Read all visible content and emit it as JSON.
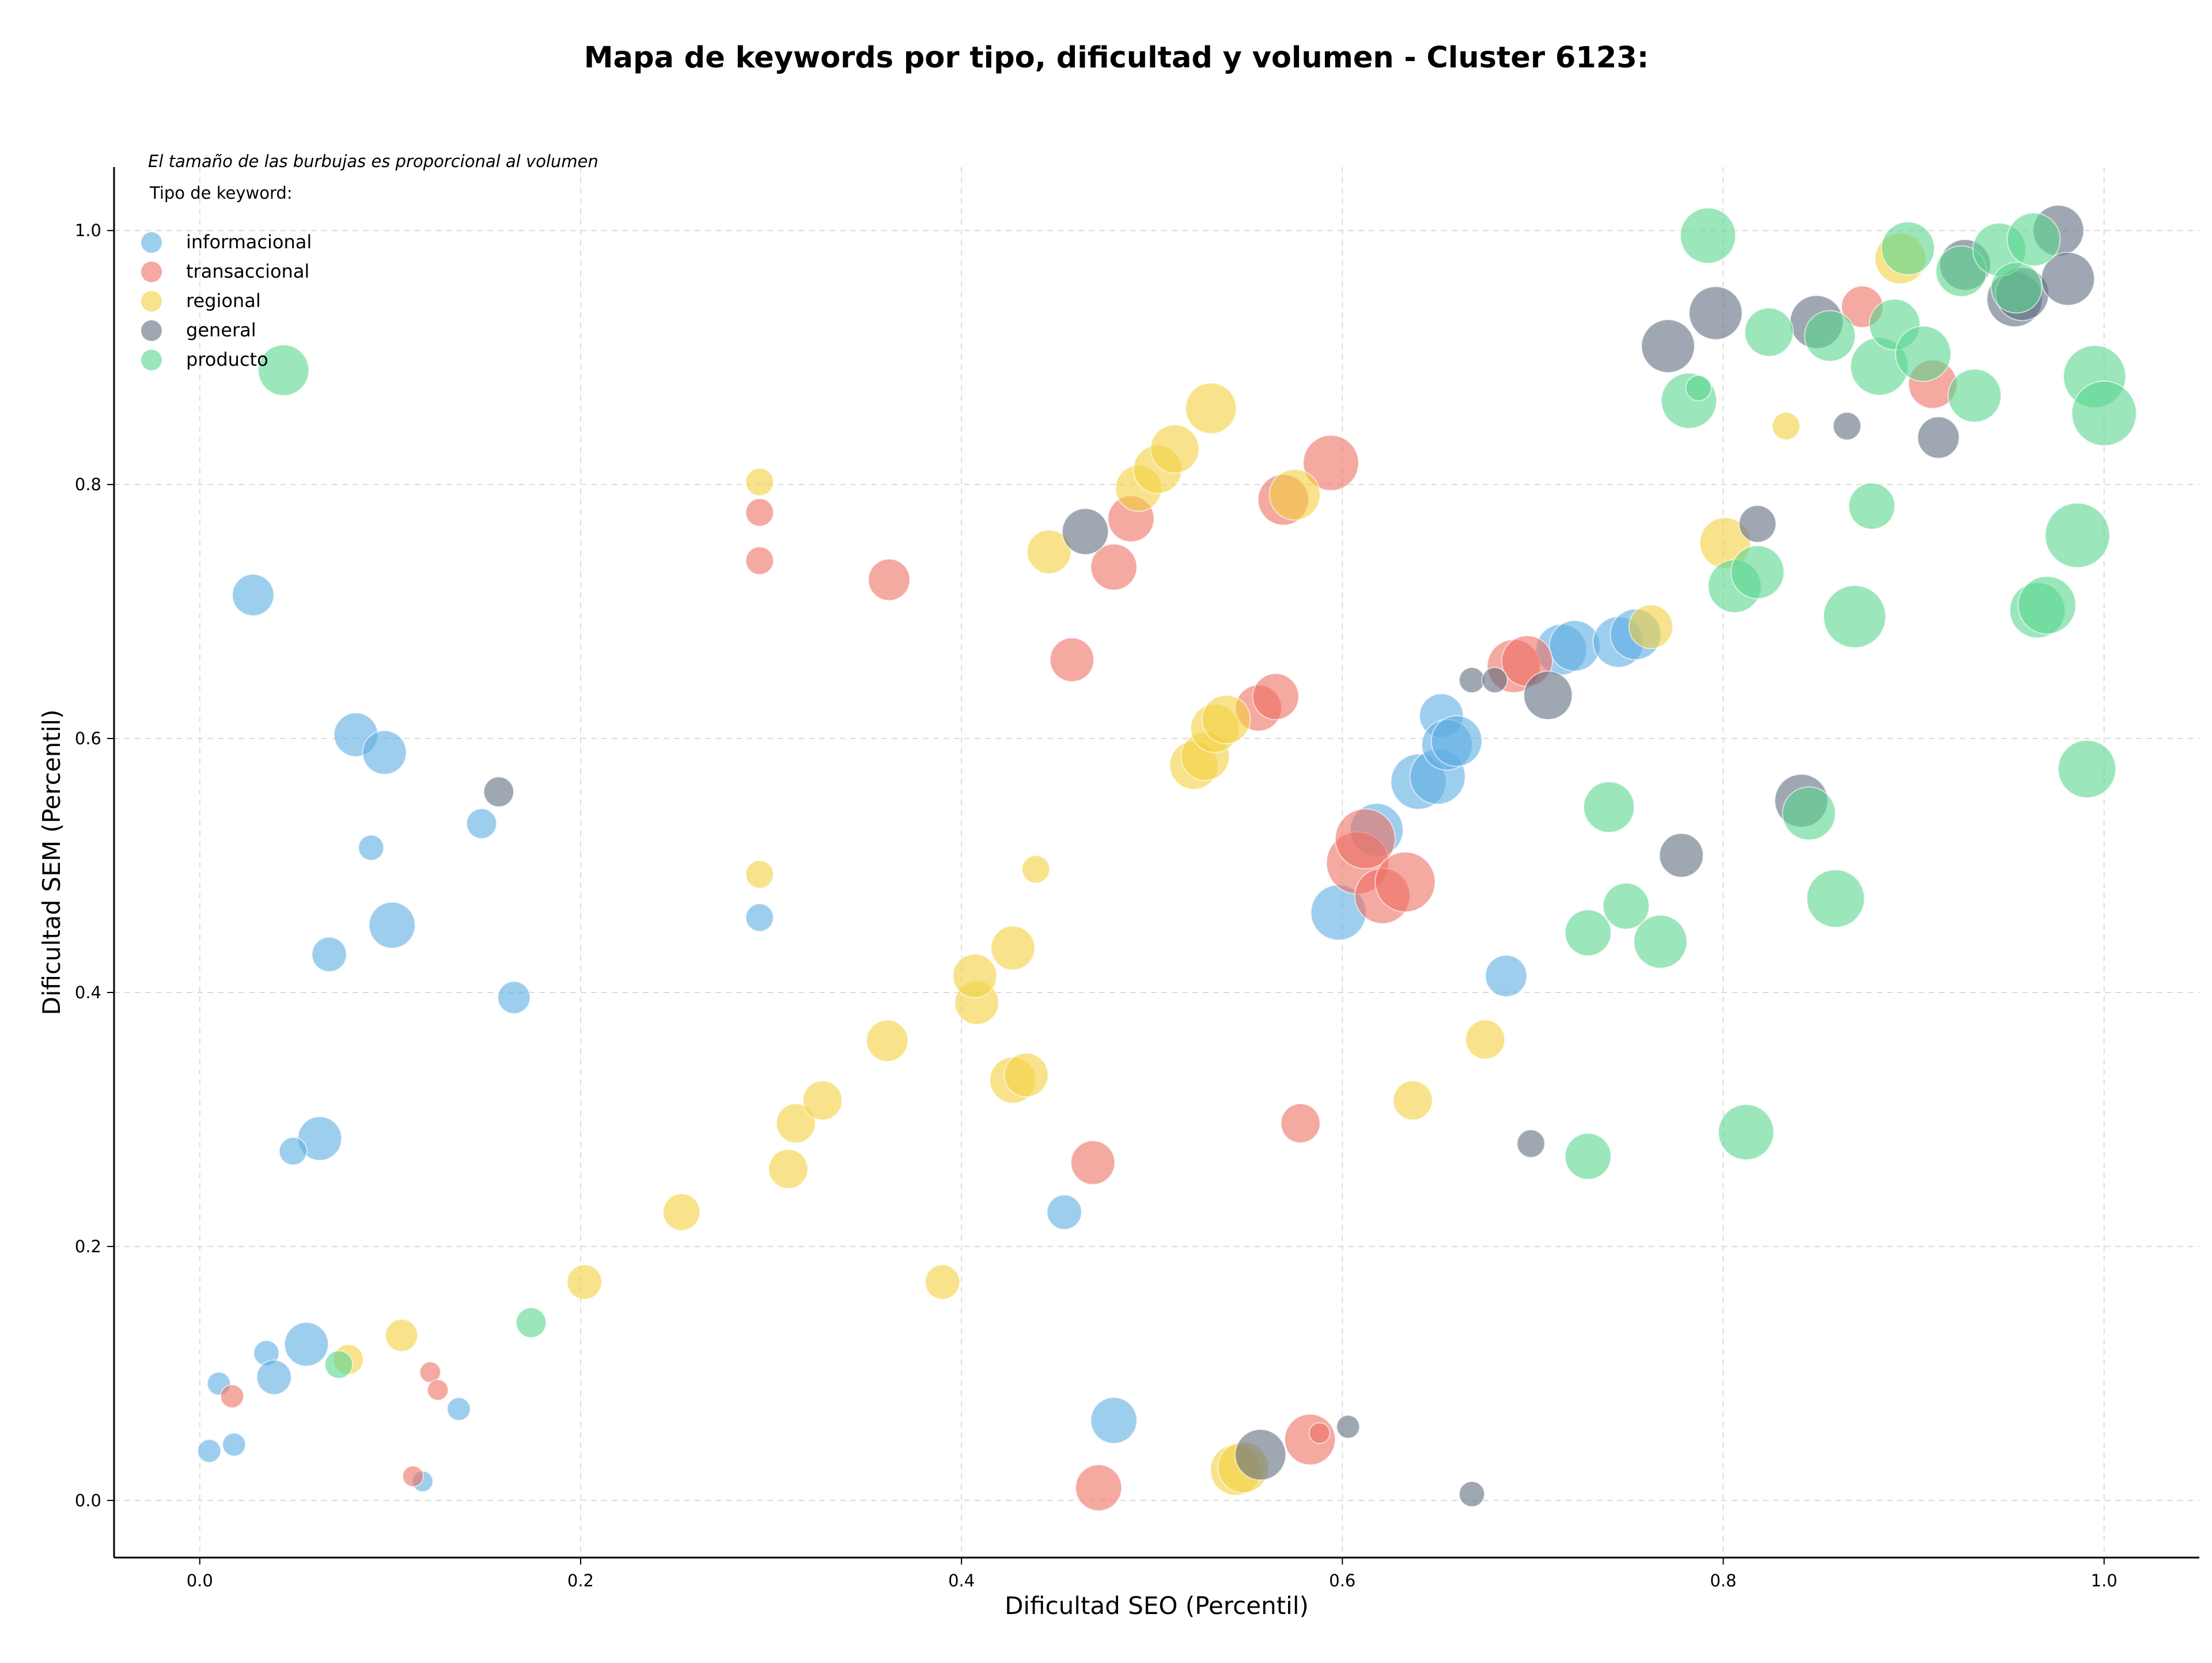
{
  "chart_data": {
    "type": "scatter",
    "title": "Mapa de keywords por tipo, dificultad y volumen - Cluster 6123:",
    "note": "El tamaño de las burbujas es proporcional al volumen",
    "xlabel": "Dificultad SEO (Percentil)",
    "ylabel": "Dificultad SEM (Percentil)",
    "xlim": [
      -0.045,
      1.05
    ],
    "ylim": [
      -0.045,
      1.05
    ],
    "xticks": [
      0.0,
      0.2,
      0.4,
      0.6,
      0.8,
      1.0
    ],
    "yticks": [
      0.0,
      0.2,
      0.4,
      0.6,
      0.8,
      1.0
    ],
    "xtick_labels": [
      "0.0",
      "0.2",
      "0.4",
      "0.6",
      "0.8",
      "1.0"
    ],
    "ytick_labels": [
      "0.0",
      "0.2",
      "0.4",
      "0.6",
      "0.8",
      "1.0"
    ],
    "grid": true,
    "legend": {
      "title": "Tipo de keyword:",
      "placement": "top-left"
    },
    "series": [
      {
        "name": "informacional",
        "color": "#5DADE2",
        "points": [
          {
            "x": 0.028,
            "y": 0.713,
            "r": 36
          },
          {
            "x": 0.082,
            "y": 0.603,
            "r": 38
          },
          {
            "x": 0.097,
            "y": 0.589,
            "r": 38
          },
          {
            "x": 0.09,
            "y": 0.514,
            "r": 22
          },
          {
            "x": 0.148,
            "y": 0.533,
            "r": 26
          },
          {
            "x": 0.101,
            "y": 0.453,
            "r": 40
          },
          {
            "x": 0.068,
            "y": 0.43,
            "r": 30
          },
          {
            "x": 0.165,
            "y": 0.396,
            "r": 28
          },
          {
            "x": 0.063,
            "y": 0.285,
            "r": 38
          },
          {
            "x": 0.049,
            "y": 0.275,
            "r": 24
          },
          {
            "x": 0.056,
            "y": 0.123,
            "r": 38
          },
          {
            "x": 0.035,
            "y": 0.116,
            "r": 22
          },
          {
            "x": 0.039,
            "y": 0.097,
            "r": 30
          },
          {
            "x": 0.01,
            "y": 0.092,
            "r": 20
          },
          {
            "x": 0.005,
            "y": 0.039,
            "r": 20
          },
          {
            "x": 0.018,
            "y": 0.044,
            "r": 20
          },
          {
            "x": 0.117,
            "y": 0.015,
            "r": 18
          },
          {
            "x": 0.136,
            "y": 0.072,
            "r": 20
          },
          {
            "x": 0.294,
            "y": 0.459,
            "r": 24
          },
          {
            "x": 0.454,
            "y": 0.227,
            "r": 30
          },
          {
            "x": 0.48,
            "y": 0.063,
            "r": 40
          },
          {
            "x": 0.598,
            "y": 0.463,
            "r": 48
          },
          {
            "x": 0.618,
            "y": 0.528,
            "r": 46
          },
          {
            "x": 0.64,
            "y": 0.566,
            "r": 48
          },
          {
            "x": 0.65,
            "y": 0.57,
            "r": 48
          },
          {
            "x": 0.652,
            "y": 0.618,
            "r": 38
          },
          {
            "x": 0.655,
            "y": 0.595,
            "r": 44
          },
          {
            "x": 0.66,
            "y": 0.598,
            "r": 44
          },
          {
            "x": 0.686,
            "y": 0.413,
            "r": 36
          },
          {
            "x": 0.715,
            "y": 0.67,
            "r": 44
          },
          {
            "x": 0.722,
            "y": 0.673,
            "r": 44
          },
          {
            "x": 0.745,
            "y": 0.676,
            "r": 44
          },
          {
            "x": 0.754,
            "y": 0.682,
            "r": 44
          }
        ]
      },
      {
        "name": "transaccional",
        "color": "#EC7063",
        "points": [
          {
            "x": 0.017,
            "y": 0.082,
            "r": 20
          },
          {
            "x": 0.121,
            "y": 0.101,
            "r": 18
          },
          {
            "x": 0.125,
            "y": 0.087,
            "r": 18
          },
          {
            "x": 0.112,
            "y": 0.019,
            "r": 18
          },
          {
            "x": 0.294,
            "y": 0.778,
            "r": 24
          },
          {
            "x": 0.294,
            "y": 0.74,
            "r": 24
          },
          {
            "x": 0.362,
            "y": 0.725,
            "r": 36
          },
          {
            "x": 0.458,
            "y": 0.662,
            "r": 38
          },
          {
            "x": 0.48,
            "y": 0.735,
            "r": 40
          },
          {
            "x": 0.489,
            "y": 0.773,
            "r": 40
          },
          {
            "x": 0.472,
            "y": 0.01,
            "r": 40
          },
          {
            "x": 0.469,
            "y": 0.266,
            "r": 38
          },
          {
            "x": 0.556,
            "y": 0.624,
            "r": 40
          },
          {
            "x": 0.565,
            "y": 0.633,
            "r": 40
          },
          {
            "x": 0.569,
            "y": 0.788,
            "r": 44
          },
          {
            "x": 0.594,
            "y": 0.817,
            "r": 48
          },
          {
            "x": 0.578,
            "y": 0.297,
            "r": 34
          },
          {
            "x": 0.583,
            "y": 0.048,
            "r": 44
          },
          {
            "x": 0.588,
            "y": 0.053,
            "r": 18
          },
          {
            "x": 0.608,
            "y": 0.502,
            "r": 54
          },
          {
            "x": 0.612,
            "y": 0.521,
            "r": 52
          },
          {
            "x": 0.621,
            "y": 0.476,
            "r": 48
          },
          {
            "x": 0.633,
            "y": 0.487,
            "r": 52
          },
          {
            "x": 0.69,
            "y": 0.657,
            "r": 46
          },
          {
            "x": 0.697,
            "y": 0.661,
            "r": 44
          },
          {
            "x": 0.873,
            "y": 0.94,
            "r": 36
          },
          {
            "x": 0.91,
            "y": 0.879,
            "r": 42
          }
        ]
      },
      {
        "name": "regional",
        "color": "#F4D03F",
        "points": [
          {
            "x": 0.078,
            "y": 0.111,
            "r": 26
          },
          {
            "x": 0.106,
            "y": 0.13,
            "r": 28
          },
          {
            "x": 0.202,
            "y": 0.172,
            "r": 30
          },
          {
            "x": 0.253,
            "y": 0.227,
            "r": 32
          },
          {
            "x": 0.309,
            "y": 0.261,
            "r": 34
          },
          {
            "x": 0.313,
            "y": 0.297,
            "r": 34
          },
          {
            "x": 0.327,
            "y": 0.315,
            "r": 34
          },
          {
            "x": 0.294,
            "y": 0.802,
            "r": 24
          },
          {
            "x": 0.294,
            "y": 0.493,
            "r": 24
          },
          {
            "x": 0.361,
            "y": 0.362,
            "r": 36
          },
          {
            "x": 0.39,
            "y": 0.172,
            "r": 30
          },
          {
            "x": 0.408,
            "y": 0.392,
            "r": 38
          },
          {
            "x": 0.407,
            "y": 0.413,
            "r": 38
          },
          {
            "x": 0.427,
            "y": 0.331,
            "r": 40
          },
          {
            "x": 0.434,
            "y": 0.335,
            "r": 38
          },
          {
            "x": 0.427,
            "y": 0.435,
            "r": 38
          },
          {
            "x": 0.439,
            "y": 0.497,
            "r": 24
          },
          {
            "x": 0.446,
            "y": 0.747,
            "r": 38
          },
          {
            "x": 0.493,
            "y": 0.797,
            "r": 40
          },
          {
            "x": 0.503,
            "y": 0.812,
            "r": 42
          },
          {
            "x": 0.512,
            "y": 0.828,
            "r": 42
          },
          {
            "x": 0.531,
            "y": 0.86,
            "r": 44
          },
          {
            "x": 0.522,
            "y": 0.579,
            "r": 42
          },
          {
            "x": 0.528,
            "y": 0.586,
            "r": 42
          },
          {
            "x": 0.533,
            "y": 0.608,
            "r": 42
          },
          {
            "x": 0.539,
            "y": 0.615,
            "r": 42
          },
          {
            "x": 0.544,
            "y": 0.024,
            "r": 44
          },
          {
            "x": 0.548,
            "y": 0.026,
            "r": 44
          },
          {
            "x": 0.575,
            "y": 0.792,
            "r": 44
          },
          {
            "x": 0.637,
            "y": 0.315,
            "r": 34
          },
          {
            "x": 0.675,
            "y": 0.363,
            "r": 34
          },
          {
            "x": 0.762,
            "y": 0.688,
            "r": 38
          },
          {
            "x": 0.801,
            "y": 0.754,
            "r": 44
          },
          {
            "x": 0.833,
            "y": 0.846,
            "r": 24
          },
          {
            "x": 0.893,
            "y": 0.978,
            "r": 44
          }
        ]
      },
      {
        "name": "general",
        "color": "#5D6D7E",
        "points": [
          {
            "x": 0.157,
            "y": 0.558,
            "r": 26
          },
          {
            "x": 0.465,
            "y": 0.763,
            "r": 40
          },
          {
            "x": 0.557,
            "y": 0.036,
            "r": 44
          },
          {
            "x": 0.603,
            "y": 0.058,
            "r": 20
          },
          {
            "x": 0.668,
            "y": 0.005,
            "r": 22
          },
          {
            "x": 0.668,
            "y": 0.646,
            "r": 22
          },
          {
            "x": 0.68,
            "y": 0.646,
            "r": 22
          },
          {
            "x": 0.708,
            "y": 0.634,
            "r": 42
          },
          {
            "x": 0.699,
            "y": 0.281,
            "r": 24
          },
          {
            "x": 0.771,
            "y": 0.909,
            "r": 46
          },
          {
            "x": 0.796,
            "y": 0.935,
            "r": 46
          },
          {
            "x": 0.818,
            "y": 0.769,
            "r": 32
          },
          {
            "x": 0.778,
            "y": 0.508,
            "r": 38
          },
          {
            "x": 0.841,
            "y": 0.551,
            "r": 46
          },
          {
            "x": 0.849,
            "y": 0.928,
            "r": 46
          },
          {
            "x": 0.865,
            "y": 0.846,
            "r": 24
          },
          {
            "x": 0.913,
            "y": 0.837,
            "r": 36
          },
          {
            "x": 0.927,
            "y": 0.973,
            "r": 44
          },
          {
            "x": 0.953,
            "y": 0.946,
            "r": 48
          },
          {
            "x": 0.957,
            "y": 0.95,
            "r": 46
          },
          {
            "x": 0.976,
            "y": 1.0,
            "r": 44
          },
          {
            "x": 0.981,
            "y": 0.962,
            "r": 46
          }
        ]
      },
      {
        "name": "producto",
        "color": "#58D68D",
        "points": [
          {
            "x": 0.044,
            "y": 0.89,
            "r": 44
          },
          {
            "x": 0.073,
            "y": 0.107,
            "r": 24
          },
          {
            "x": 0.174,
            "y": 0.14,
            "r": 26
          },
          {
            "x": 0.729,
            "y": 0.447,
            "r": 40
          },
          {
            "x": 0.729,
            "y": 0.271,
            "r": 40
          },
          {
            "x": 0.74,
            "y": 0.546,
            "r": 44
          },
          {
            "x": 0.749,
            "y": 0.468,
            "r": 40
          },
          {
            "x": 0.767,
            "y": 0.44,
            "r": 46
          },
          {
            "x": 0.782,
            "y": 0.866,
            "r": 48
          },
          {
            "x": 0.787,
            "y": 0.876,
            "r": 22
          },
          {
            "x": 0.792,
            "y": 0.996,
            "r": 48
          },
          {
            "x": 0.806,
            "y": 0.72,
            "r": 46
          },
          {
            "x": 0.818,
            "y": 0.731,
            "r": 46
          },
          {
            "x": 0.812,
            "y": 0.29,
            "r": 48
          },
          {
            "x": 0.824,
            "y": 0.92,
            "r": 42
          },
          {
            "x": 0.845,
            "y": 0.541,
            "r": 46
          },
          {
            "x": 0.856,
            "y": 0.917,
            "r": 44
          },
          {
            "x": 0.859,
            "y": 0.474,
            "r": 50
          },
          {
            "x": 0.869,
            "y": 0.696,
            "r": 54
          },
          {
            "x": 0.878,
            "y": 0.783,
            "r": 40
          },
          {
            "x": 0.882,
            "y": 0.893,
            "r": 50
          },
          {
            "x": 0.89,
            "y": 0.926,
            "r": 44
          },
          {
            "x": 0.897,
            "y": 0.986,
            "r": 46
          },
          {
            "x": 0.905,
            "y": 0.903,
            "r": 48
          },
          {
            "x": 0.925,
            "y": 0.968,
            "r": 44
          },
          {
            "x": 0.932,
            "y": 0.87,
            "r": 46
          },
          {
            "x": 0.945,
            "y": 0.985,
            "r": 46
          },
          {
            "x": 0.954,
            "y": 0.955,
            "r": 44
          },
          {
            "x": 0.963,
            "y": 0.993,
            "r": 46
          },
          {
            "x": 0.965,
            "y": 0.701,
            "r": 48
          },
          {
            "x": 0.97,
            "y": 0.705,
            "r": 50
          },
          {
            "x": 0.986,
            "y": 0.76,
            "r": 56
          },
          {
            "x": 0.991,
            "y": 0.576,
            "r": 50
          },
          {
            "x": 0.995,
            "y": 0.885,
            "r": 54
          },
          {
            "x": 1.0,
            "y": 0.856,
            "r": 56
          }
        ]
      }
    ]
  }
}
